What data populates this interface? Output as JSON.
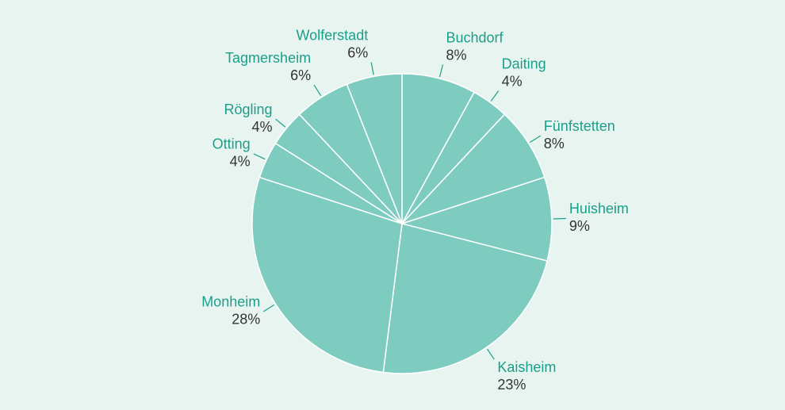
{
  "chart_data": {
    "type": "pie",
    "categories": [
      "Buchdorf",
      "Daiting",
      "Fünfstetten",
      "Huisheim",
      "Kaisheim",
      "Monheim",
      "Otting",
      "Rögling",
      "Tagmersheim",
      "Wolferstadt"
    ],
    "values": [
      8,
      4,
      8,
      9,
      23,
      28,
      4,
      4,
      6,
      6
    ],
    "value_labels": [
      "8%",
      "4%",
      "8%",
      "9%",
      "23%",
      "28%",
      "4%",
      "4%",
      "6%",
      "6%"
    ],
    "color": "#7ecbbf"
  }
}
